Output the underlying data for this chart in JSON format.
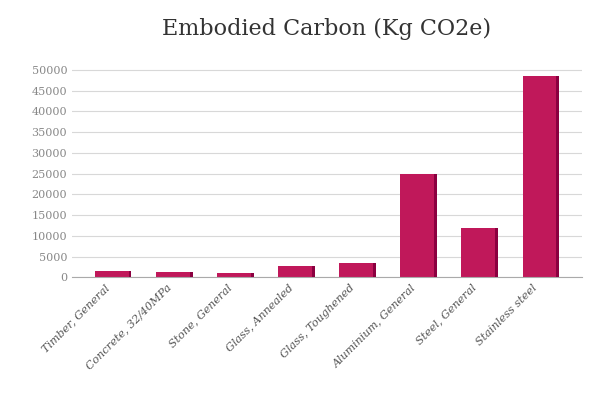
{
  "title": "Embodied Carbon (Kg CO2e)",
  "categories": [
    "Timber, General",
    "Concrete, 32/40MPa",
    "Stone, General",
    "Glass, Annealed",
    "Glass, Toughened",
    "Aluminium, General",
    "Steel, General",
    "Stainless steel"
  ],
  "values": [
    1500,
    1400,
    1100,
    2800,
    3500,
    25000,
    12000,
    48500
  ],
  "bar_color": "#C0185A",
  "bar_edge_color": "#8B0040",
  "ylim": [
    0,
    55000
  ],
  "yticks": [
    0,
    5000,
    10000,
    15000,
    20000,
    25000,
    30000,
    35000,
    40000,
    45000,
    50000
  ],
  "background_color": "#ffffff",
  "title_fontsize": 16,
  "tick_label_fontsize": 8,
  "x_tick_fontsize": 8
}
